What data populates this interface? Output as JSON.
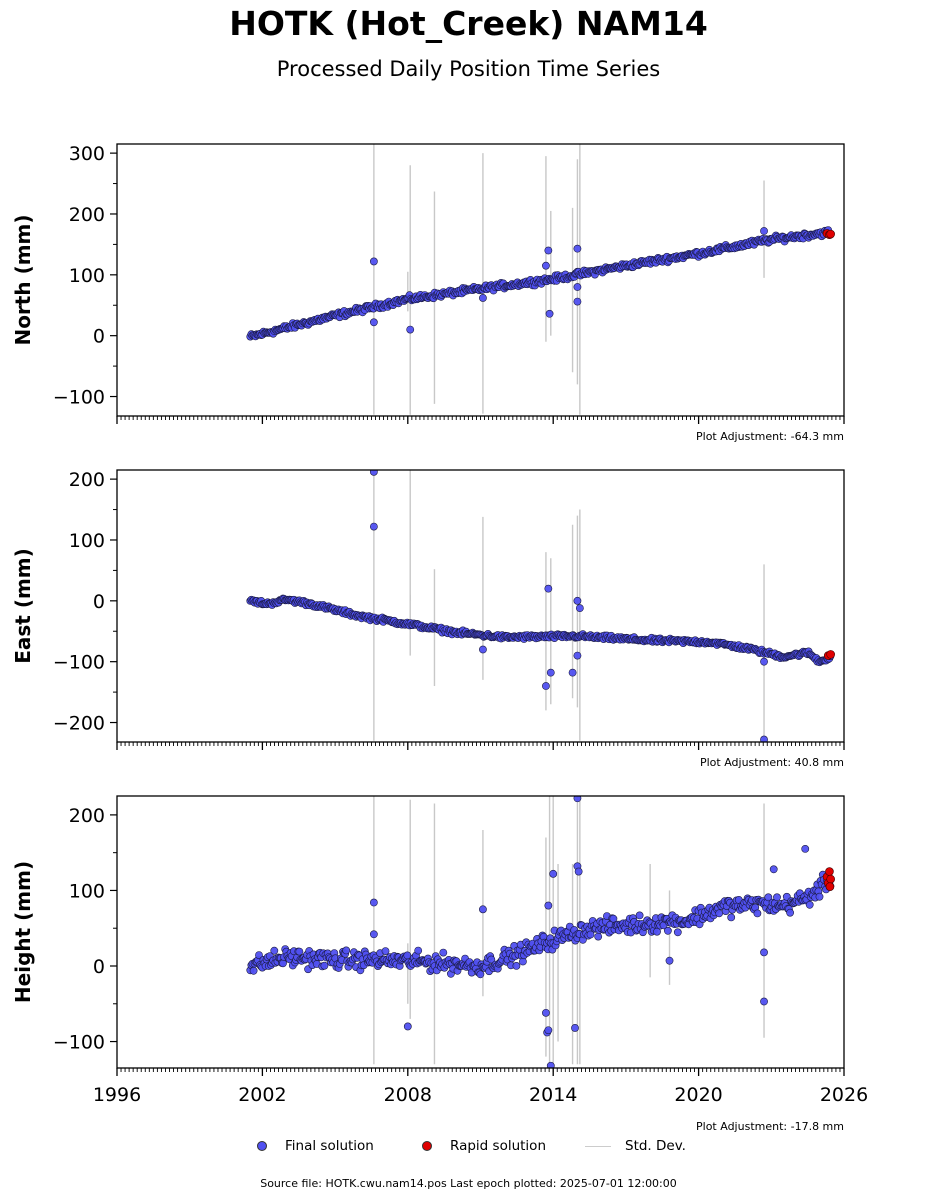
{
  "title": "HOTK (Hot_Creek) NAM14",
  "subtitle": "Processed Daily Position Time Series",
  "colors": {
    "final": "#5050f0",
    "final_edge": "#1a1a40",
    "rapid": "#e00000",
    "std_dev": "#c8c8c8",
    "axes": "#000000"
  },
  "legend": {
    "final": "Final solution",
    "rapid": "Rapid solution",
    "std": "Std. Dev."
  },
  "footer": "Source file: HOTK.cwu.nam14.pos  Last epoch plotted: 2025-07-01 12:00:00",
  "chart_data": [
    {
      "type": "scatter",
      "ylabel": "North (mm)",
      "adjustment": "Plot Adjustment: -64.3 mm",
      "xlim": [
        1996,
        2026
      ],
      "ylim": [
        -132,
        315
      ],
      "yticks": [
        -100,
        0,
        100,
        200,
        300
      ],
      "xticks": [
        1996,
        2002,
        2008,
        2014,
        2020,
        2026
      ],
      "show_xtick_labels": false,
      "trend": [
        [
          2001.5,
          -2
        ],
        [
          2005,
          33
        ],
        [
          2008,
          60
        ],
        [
          2011,
          77
        ],
        [
          2014,
          93
        ],
        [
          2017,
          115
        ],
        [
          2020,
          135
        ],
        [
          2023,
          158
        ],
        [
          2025.4,
          170
        ]
      ],
      "noise": 4,
      "outliers": [
        [
          2006.6,
          122
        ],
        [
          2006.6,
          22
        ],
        [
          2008.1,
          10
        ],
        [
          2011.1,
          62
        ],
        [
          2013.7,
          115
        ],
        [
          2013.8,
          140
        ],
        [
          2013.85,
          36
        ],
        [
          2015.0,
          143
        ],
        [
          2015.0,
          56
        ],
        [
          2015.0,
          80
        ],
        [
          2022.7,
          172
        ]
      ],
      "errorbars": [
        [
          2006.6,
          -130,
          315
        ],
        [
          2006.6,
          190,
          130
        ],
        [
          2008.1,
          -130,
          280
        ],
        [
          2008.0,
          105,
          40
        ],
        [
          2009.1,
          -112,
          237
        ],
        [
          2011.1,
          -128,
          300
        ],
        [
          2013.7,
          -10,
          295
        ],
        [
          2013.9,
          0,
          205
        ],
        [
          2014.8,
          -60,
          210
        ],
        [
          2015.0,
          -80,
          290
        ],
        [
          2015.1,
          -130,
          315
        ],
        [
          2022.7,
          95,
          255
        ]
      ],
      "rapid": [
        [
          2025.3,
          168
        ],
        [
          2025.4,
          166
        ],
        [
          2025.45,
          167
        ]
      ]
    },
    {
      "type": "scatter",
      "ylabel": "East (mm)",
      "adjustment": "Plot Adjustment: 40.8 mm",
      "xlim": [
        1996,
        2026
      ],
      "ylim": [
        -232,
        215
      ],
      "yticks": [
        -200,
        -100,
        0,
        100,
        200
      ],
      "xticks": [
        1996,
        2002,
        2008,
        2014,
        2020,
        2026
      ],
      "show_xtick_labels": false,
      "trend": [
        [
          2001.5,
          0
        ],
        [
          2002.2,
          -5
        ],
        [
          2003,
          2
        ],
        [
          2004,
          -5
        ],
        [
          2006,
          -25
        ],
        [
          2008,
          -38
        ],
        [
          2010,
          -52
        ],
        [
          2012,
          -60
        ],
        [
          2015,
          -58
        ],
        [
          2018,
          -65
        ],
        [
          2020.5,
          -68
        ],
        [
          2022,
          -78
        ],
        [
          2023.5,
          -92
        ],
        [
          2024.5,
          -85
        ],
        [
          2025,
          -100
        ],
        [
          2025.45,
          -92
        ]
      ],
      "noise": 3,
      "outliers": [
        [
          2006.6,
          212
        ],
        [
          2006.6,
          122
        ],
        [
          2011.1,
          -80
        ],
        [
          2013.7,
          -140
        ],
        [
          2013.8,
          20
        ],
        [
          2013.9,
          -118
        ],
        [
          2014.8,
          -118
        ],
        [
          2015.0,
          0
        ],
        [
          2015.1,
          -12
        ],
        [
          2015.0,
          -90
        ],
        [
          2022.7,
          -100
        ],
        [
          2022.7,
          -228
        ]
      ],
      "errorbars": [
        [
          2006.6,
          -230,
          215
        ],
        [
          2008.1,
          -90,
          10
        ],
        [
          2008.1,
          0,
          215
        ],
        [
          2009.1,
          -140,
          52
        ],
        [
          2011.1,
          -130,
          138
        ],
        [
          2013.7,
          -180,
          80
        ],
        [
          2013.9,
          -170,
          70
        ],
        [
          2014.8,
          -160,
          125
        ],
        [
          2015.0,
          -175,
          140
        ],
        [
          2015.1,
          -230,
          150
        ],
        [
          2022.7,
          -230,
          60
        ]
      ],
      "rapid": [
        [
          2025.35,
          -90
        ],
        [
          2025.45,
          -88
        ]
      ]
    },
    {
      "type": "scatter",
      "ylabel": "Height (mm)",
      "adjustment": "Plot Adjustment: -17.8 mm",
      "xlim": [
        1996,
        2026
      ],
      "ylim": [
        -135,
        225
      ],
      "yticks": [
        -100,
        0,
        100,
        200
      ],
      "xticks": [
        1996,
        2002,
        2008,
        2014,
        2020,
        2026
      ],
      "xticklabels": [
        "1996",
        "2002",
        "2008",
        "2014",
        "2020",
        "2026"
      ],
      "show_xtick_labels": true,
      "trend": [
        [
          2001.5,
          0
        ],
        [
          2003,
          12
        ],
        [
          2005,
          8
        ],
        [
          2007,
          8
        ],
        [
          2009,
          5
        ],
        [
          2011,
          0
        ],
        [
          2012.5,
          15
        ],
        [
          2014,
          35
        ],
        [
          2015.5,
          50
        ],
        [
          2017.5,
          55
        ],
        [
          2019.5,
          60
        ],
        [
          2021,
          78
        ],
        [
          2022.5,
          82
        ],
        [
          2023.5,
          80
        ],
        [
          2024.5,
          90
        ],
        [
          2025.45,
          115
        ]
      ],
      "noise": 10,
      "outliers": [
        [
          2006.6,
          84
        ],
        [
          2006.6,
          42
        ],
        [
          2008.0,
          -80
        ],
        [
          2011.1,
          75
        ],
        [
          2013.7,
          -62
        ],
        [
          2013.75,
          -88
        ],
        [
          2013.8,
          -85
        ],
        [
          2013.9,
          -132
        ],
        [
          2014.0,
          122
        ],
        [
          2013.8,
          80
        ],
        [
          2014.9,
          -82
        ],
        [
          2015.0,
          132
        ],
        [
          2015.0,
          222
        ],
        [
          2015.05,
          125
        ],
        [
          2018.8,
          7
        ],
        [
          2022.7,
          18
        ],
        [
          2022.7,
          -47
        ],
        [
          2023.1,
          128
        ],
        [
          2024.4,
          155
        ]
      ],
      "errorbars": [
        [
          2006.6,
          -130,
          225
        ],
        [
          2008.0,
          -50,
          30
        ],
        [
          2008.1,
          -70,
          220
        ],
        [
          2009.1,
          -130,
          215
        ],
        [
          2011.1,
          -40,
          180
        ],
        [
          2013.7,
          -120,
          170
        ],
        [
          2013.85,
          -130,
          225
        ],
        [
          2014.0,
          -130,
          225
        ],
        [
          2014.2,
          -100,
          135
        ],
        [
          2014.8,
          -130,
          135
        ],
        [
          2015.0,
          -130,
          225
        ],
        [
          2015.1,
          -130,
          225
        ],
        [
          2018.0,
          -15,
          135
        ],
        [
          2018.8,
          -25,
          100
        ],
        [
          2022.7,
          -95,
          215
        ]
      ],
      "rapid": [
        [
          2025.3,
          118
        ],
        [
          2025.35,
          110
        ],
        [
          2025.4,
          125
        ],
        [
          2025.45,
          115
        ],
        [
          2025.42,
          105
        ]
      ]
    }
  ]
}
